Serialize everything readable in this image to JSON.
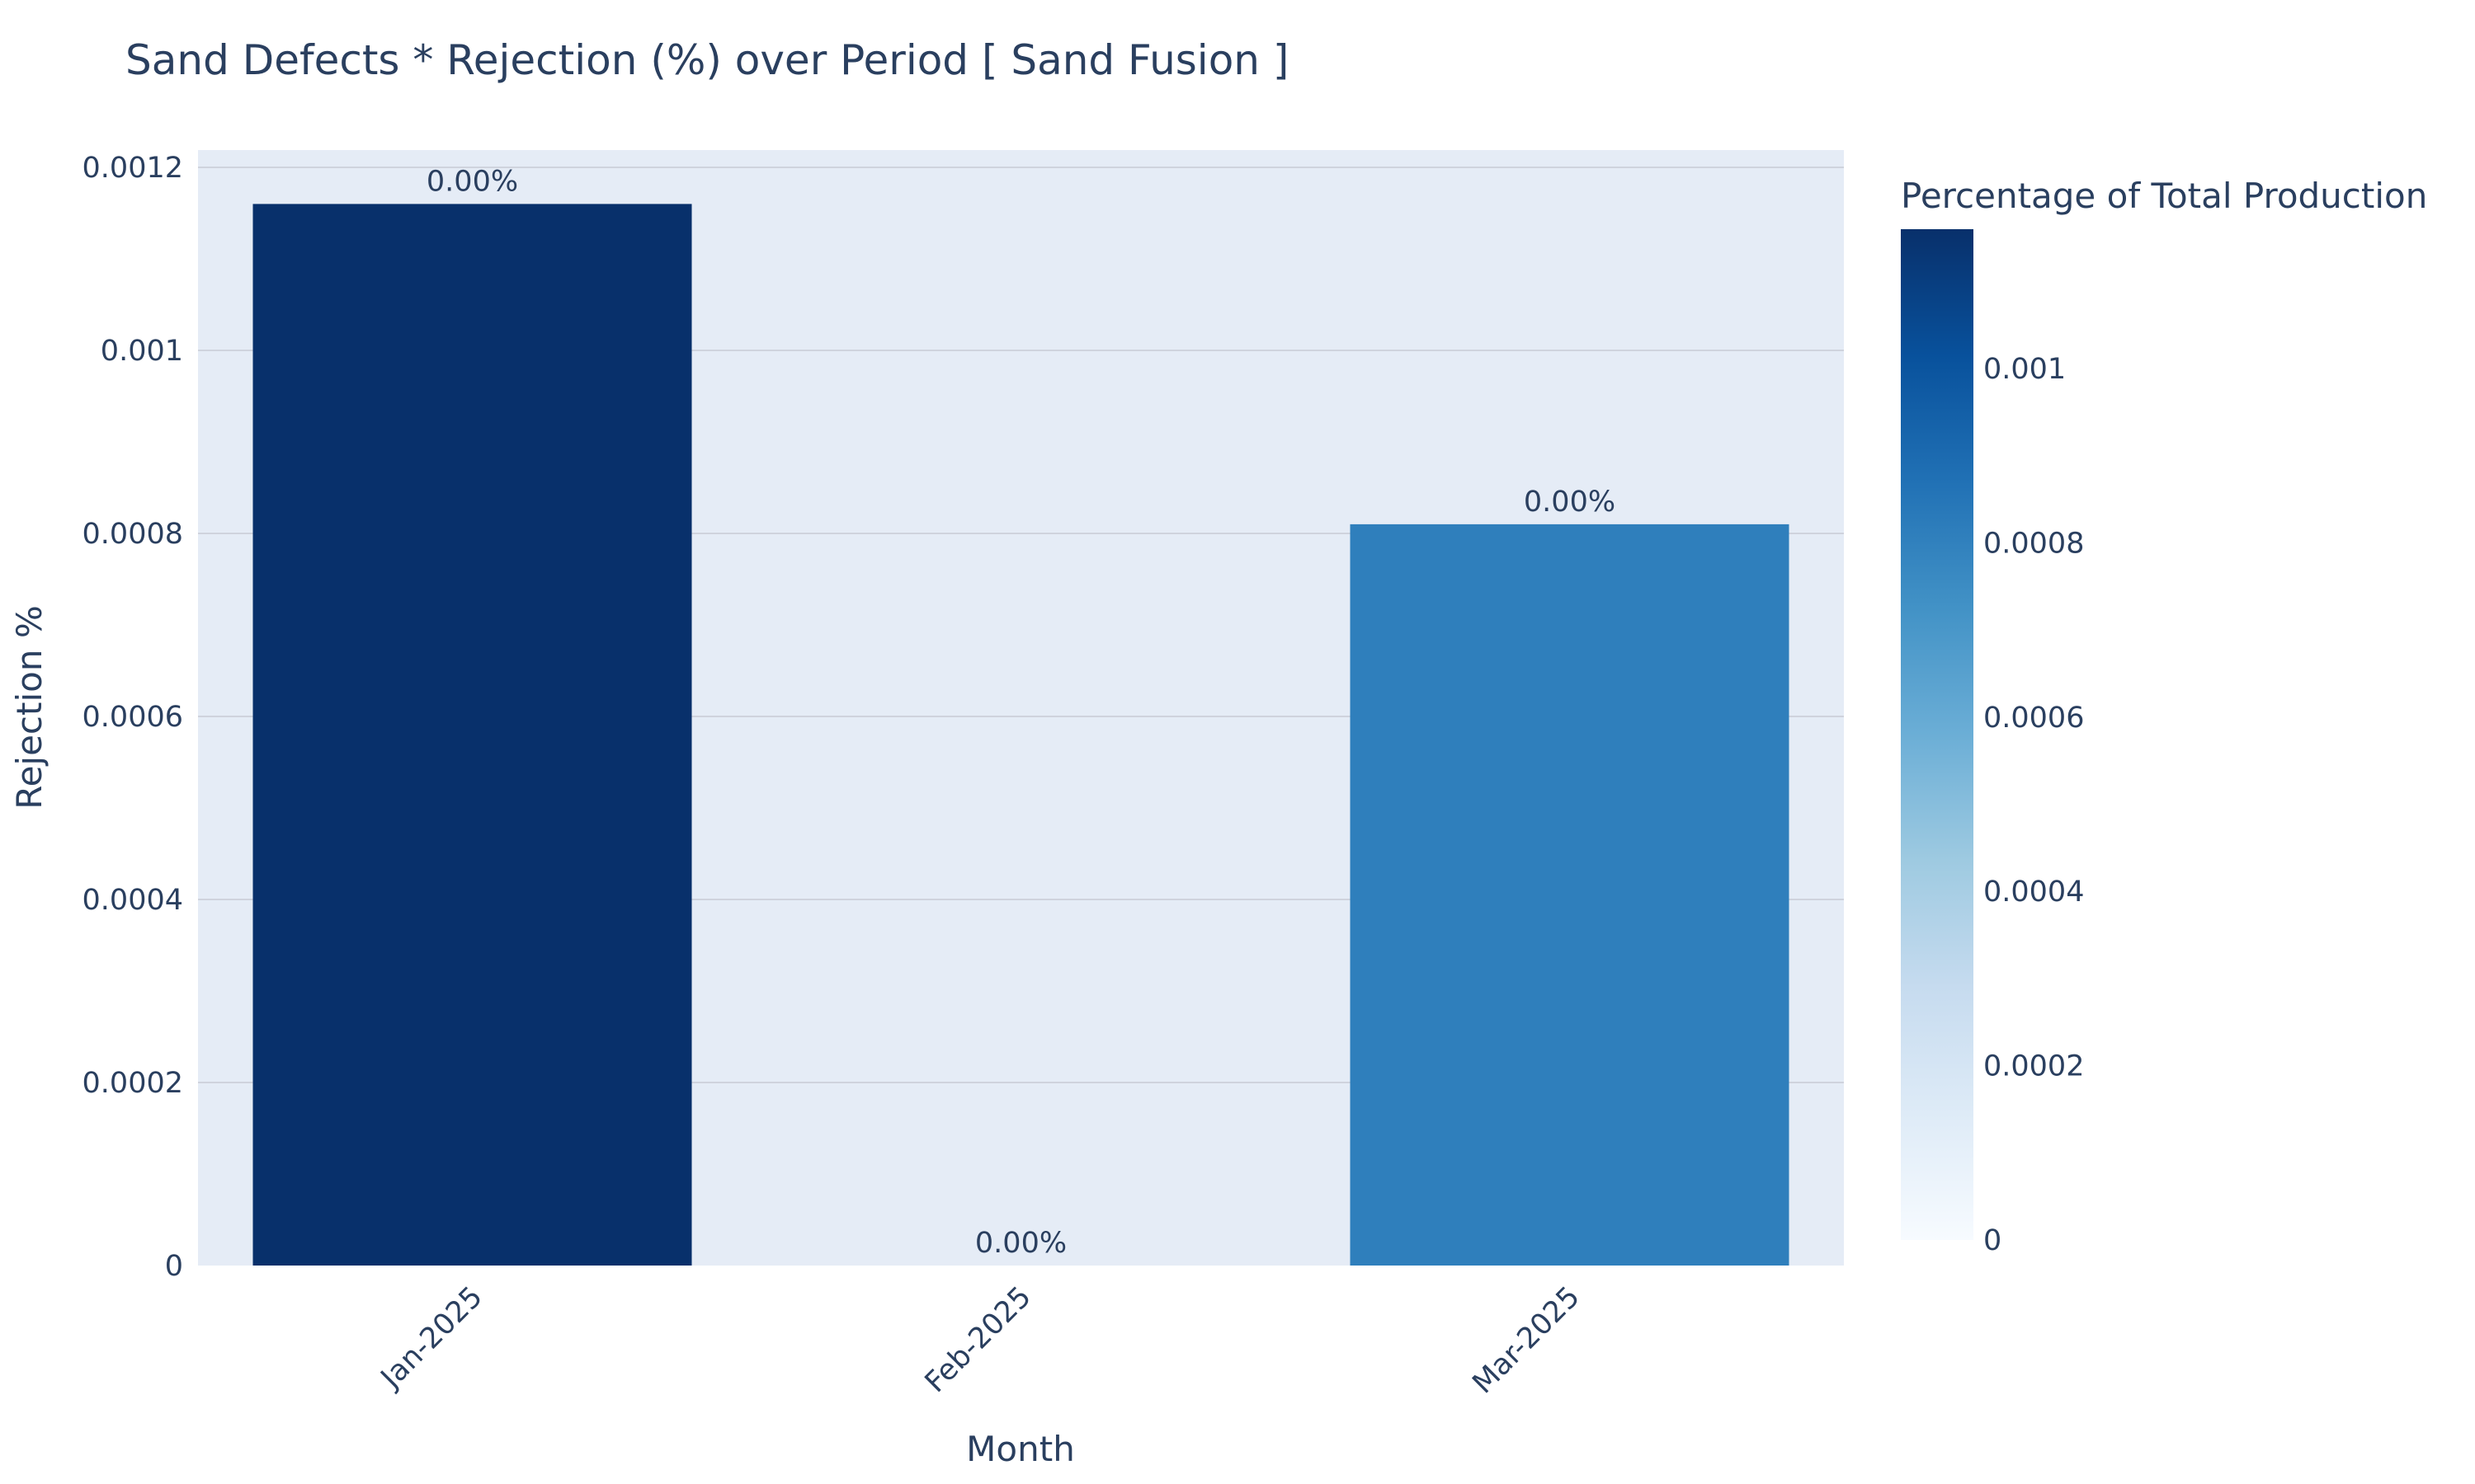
{
  "chart_data": {
    "type": "bar",
    "title": "Sand Defects * Rejection (%) over Period [ Sand Fusion ]",
    "xlabel": "Month",
    "ylabel": "Rejection %",
    "categories": [
      "Jan-2025",
      "Feb-2025",
      "Mar-2025"
    ],
    "values": [
      0.00116,
      0.0,
      0.00081
    ],
    "text_labels": [
      "0.00%",
      "0.00%",
      "0.00%"
    ],
    "ylim": [
      0,
      0.0012
    ],
    "yticks": [
      0,
      0.0002,
      0.0004,
      0.0006,
      0.0008,
      0.001,
      0.0012
    ],
    "ytick_labels": [
      "0",
      "0.0002",
      "0.0004",
      "0.0006",
      "0.0008",
      "0.001",
      "0.0012"
    ],
    "grid": true,
    "legend": "none",
    "colorbar": {
      "title": "Percentage of Total Production",
      "range": [
        0,
        0.00116
      ],
      "ticks": [
        0,
        0.0002,
        0.0004,
        0.0006,
        0.0008,
        0.001
      ],
      "tick_labels": [
        "0",
        "0.0002",
        "0.0004",
        "0.0006",
        "0.0008",
        "0.001"
      ],
      "colorscale": "Blues",
      "placement": "right"
    },
    "colors": {
      "plot_bg": "#e5ecf6",
      "grid": "#cfd3dd",
      "text": "#2a3f5f",
      "scale": [
        "#f7fbff",
        "#deebf7",
        "#c6dbef",
        "#9ecae1",
        "#6baed6",
        "#4292c6",
        "#2171b5",
        "#08519c",
        "#08306b"
      ]
    }
  }
}
